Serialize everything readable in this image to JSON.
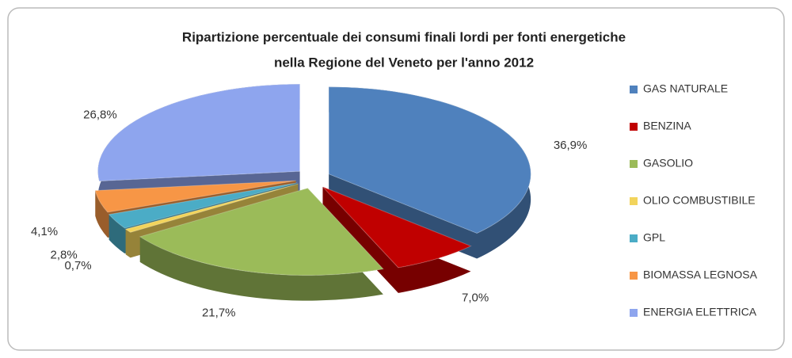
{
  "chart_data": {
    "type": "pie3d",
    "title": [
      "Ripartizione percentuale dei consumi finali lordi per fonti energetiche",
      "nella Regione del Veneto  per l'anno 2012"
    ],
    "categories": [
      "GAS NATURALE",
      "BENZINA",
      "GASOLIO",
      "OLIO COMBUSTIBILE",
      "GPL",
      "BIOMASSA LEGNOSA",
      "ENERGIA ELETTRICA"
    ],
    "values": [
      36.9,
      7.0,
      21.7,
      0.7,
      2.8,
      4.1,
      26.8
    ],
    "value_labels": [
      "36,9%",
      "7,0%",
      "21,7%",
      "0,7%",
      "2,8%",
      "4,1%",
      "26,8%"
    ],
    "colors": [
      "#4f81bd",
      "#c00000",
      "#9bbb59",
      "#f2d45c",
      "#4bacc6",
      "#f79646",
      "#8ea5ee"
    ],
    "legend": "right"
  }
}
